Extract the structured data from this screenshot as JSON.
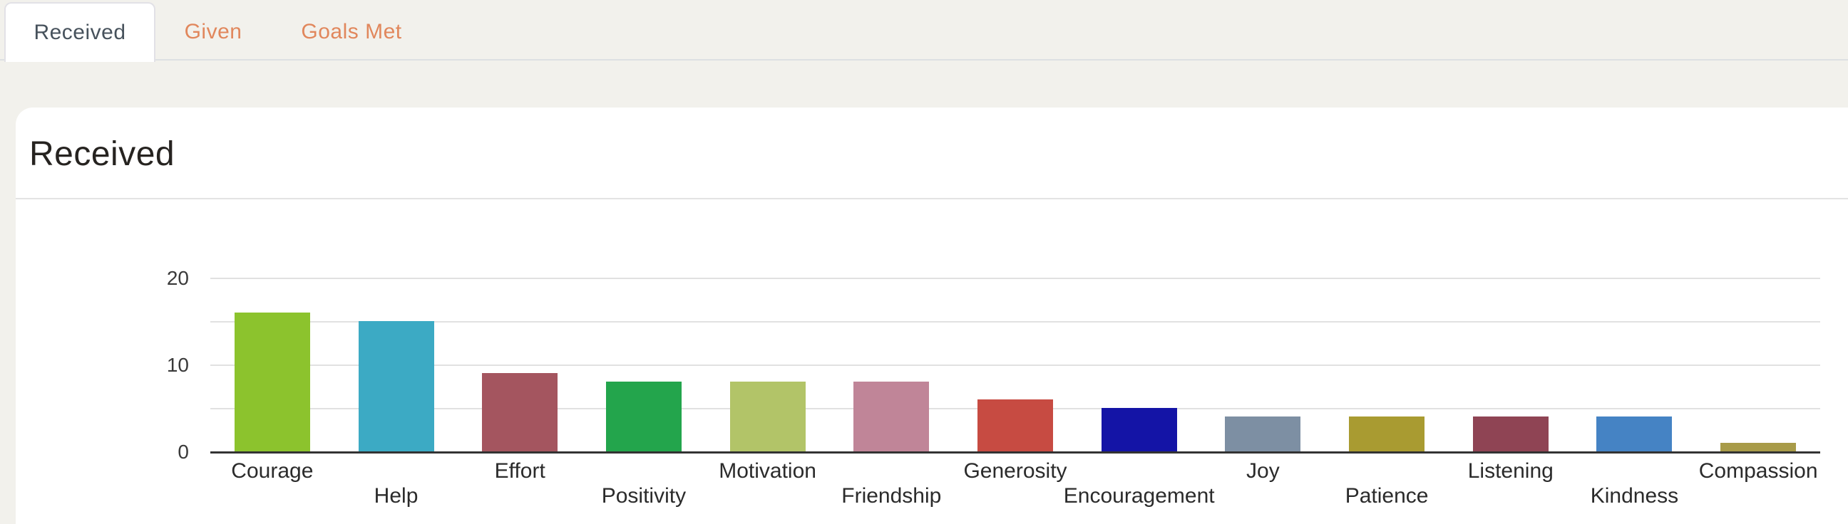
{
  "tabbar": {
    "tabs": [
      {
        "label": "Received",
        "active": true
      },
      {
        "label": "Given",
        "active": false
      },
      {
        "label": "Goals Met",
        "active": false
      }
    ]
  },
  "card": {
    "title": "Received"
  },
  "colors": {
    "page_background": "#f2f1ec",
    "tab_active_text": "#47525c",
    "tab_inactive_text": "#e1875c",
    "tab_border": "#e2e1e6",
    "card_background": "#ffffff",
    "gridline": "#e1e1e1",
    "axis_line": "#333333"
  },
  "chart_data": {
    "type": "bar",
    "title": "Received",
    "categories": [
      "Courage",
      "Help",
      "Effort",
      "Positivity",
      "Motivation",
      "Friendship",
      "Generosity",
      "Encouragement",
      "Joy",
      "Patience",
      "Listening",
      "Kindness",
      "Compassion"
    ],
    "values": [
      16,
      15,
      9,
      8,
      8,
      8,
      6,
      5,
      4,
      4,
      4,
      4,
      1
    ],
    "bar_colors": [
      "#8cc32d",
      "#3caac4",
      "#a4555f",
      "#23a54c",
      "#b2c468",
      "#c08598",
      "#c74b42",
      "#1414a6",
      "#7d8fa3",
      "#a99b31",
      "#8f4454",
      "#4583c4",
      "#a89b49"
    ],
    "xlabel": "",
    "ylabel": "",
    "ylim": [
      0,
      20
    ],
    "yticks": [
      0,
      10,
      20
    ],
    "gridlines": [
      5,
      10,
      15,
      20
    ],
    "grid": true,
    "legend": false,
    "xlabels_staggered": true
  }
}
